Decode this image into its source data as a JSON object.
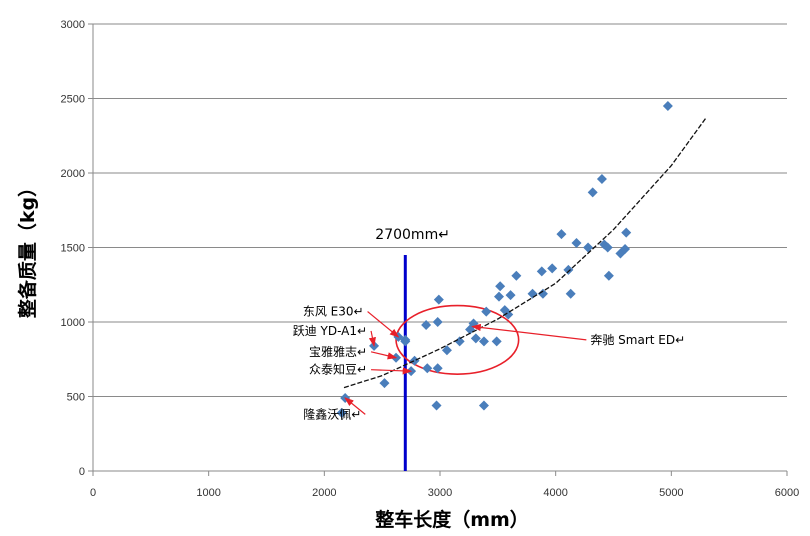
{
  "chart_data": {
    "type": "scatter",
    "xlabel": "整车长度（mm）",
    "ylabel": "整备质量（kg）",
    "xlim": [
      0,
      6000
    ],
    "ylim": [
      0,
      3000
    ],
    "x_ticks": [
      0,
      1000,
      2000,
      3000,
      4000,
      5000,
      6000
    ],
    "y_ticks": [
      0,
      500,
      1000,
      1500,
      2000,
      2500,
      3000
    ],
    "grid": "horizontal",
    "marker_color": "#4a7ebb",
    "series": [
      {
        "points": [
          [
            2150,
            390
          ],
          [
            2180,
            490
          ],
          [
            2430,
            840
          ],
          [
            2520,
            590
          ],
          [
            2620,
            760
          ],
          [
            2640,
            900
          ],
          [
            2700,
            870
          ],
          [
            2700,
            880
          ],
          [
            2750,
            670
          ],
          [
            2780,
            740
          ],
          [
            2880,
            980
          ],
          [
            2890,
            690
          ],
          [
            2970,
            440
          ],
          [
            2980,
            690
          ],
          [
            2980,
            1000
          ],
          [
            2990,
            1150
          ],
          [
            3060,
            810
          ],
          [
            3170,
            870
          ],
          [
            3260,
            950
          ],
          [
            3290,
            990
          ],
          [
            3310,
            890
          ],
          [
            3380,
            870
          ],
          [
            3380,
            440
          ],
          [
            3400,
            1070
          ],
          [
            3490,
            870
          ],
          [
            3510,
            1170
          ],
          [
            3520,
            1240
          ],
          [
            3560,
            1080
          ],
          [
            3590,
            1050
          ],
          [
            3610,
            1180
          ],
          [
            3660,
            1310
          ],
          [
            3800,
            1190
          ],
          [
            3880,
            1340
          ],
          [
            3890,
            1190
          ],
          [
            3970,
            1360
          ],
          [
            4050,
            1590
          ],
          [
            4110,
            1350
          ],
          [
            4130,
            1190
          ],
          [
            4180,
            1530
          ],
          [
            4280,
            1500
          ],
          [
            4320,
            1870
          ],
          [
            4400,
            1960
          ],
          [
            4420,
            1520
          ],
          [
            4450,
            1500
          ],
          [
            4460,
            1310
          ],
          [
            4560,
            1460
          ],
          [
            4600,
            1490
          ],
          [
            4610,
            1600
          ],
          [
            4970,
            2450
          ]
        ]
      }
    ],
    "trendline": {
      "style": "dashed-black",
      "points": [
        [
          2170,
          560
        ],
        [
          2500,
          640
        ],
        [
          3000,
          820
        ],
        [
          3500,
          1020
        ],
        [
          4000,
          1260
        ],
        [
          4500,
          1620
        ],
        [
          5000,
          2050
        ],
        [
          5300,
          2370
        ]
      ]
    },
    "reference_line": {
      "x": 2700,
      "y_from": 0,
      "y_to": 1450,
      "color": "#0000cc",
      "label": "2700mm↵"
    },
    "highlight_ellipse": {
      "cx": 3150,
      "cy": 880,
      "rx": 530,
      "ry": 230,
      "color": "#e8202a"
    },
    "annotations": [
      {
        "text": "东风 E30↵",
        "label_at": [
          2080,
          1070
        ],
        "target": [
          2640,
          900
        ]
      },
      {
        "text": "跃迪 YD-A1↵",
        "label_at": [
          2110,
          940
        ],
        "target": [
          2430,
          840
        ]
      },
      {
        "text": "宝雅雅志↵",
        "label_at": [
          2110,
          800
        ],
        "target": [
          2620,
          760
        ]
      },
      {
        "text": "众泰知豆↵",
        "label_at": [
          2110,
          680
        ],
        "target": [
          2750,
          670
        ]
      },
      {
        "text": "隆鑫沃佩↵",
        "label_at": [
          2060,
          380
        ],
        "target": [
          2180,
          490
        ]
      },
      {
        "text": "奔驰 Smart ED↵",
        "label_at": [
          4300,
          880
        ],
        "target": [
          3280,
          970
        ]
      }
    ]
  }
}
